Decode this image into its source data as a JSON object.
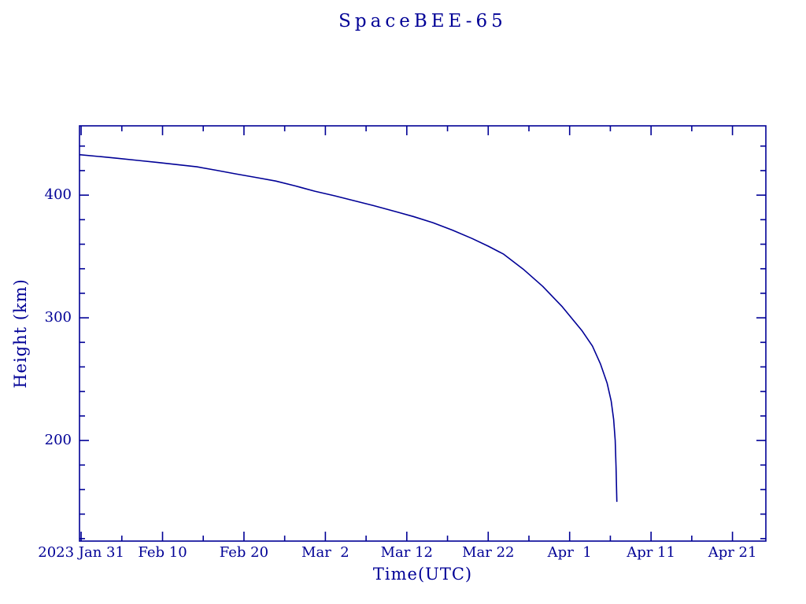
{
  "page": {
    "title": "SpaceBEE-65 orbital decay plot"
  },
  "colors": {
    "ink": "#000096",
    "background": "#ffffff"
  },
  "chart_data": {
    "type": "line",
    "title": "SpaceBEE-65",
    "xlabel": "Time(UTC)",
    "ylabel": "Height (km)",
    "grid": false,
    "legend": "none",
    "x_axis": {
      "unit": "days since 2023 Jan 31 00:00 UTC",
      "range_days": [
        -0.2,
        84.1
      ],
      "major_tick_days": [
        0,
        10,
        20,
        30,
        40,
        50,
        60,
        70,
        80
      ],
      "major_tick_labels": [
        "2023 Jan 31",
        "Feb 10",
        "Feb 20",
        "Mar  2",
        "Mar 12",
        "Mar 22",
        "Apr  1",
        "Apr 11",
        "Apr 21"
      ],
      "minor_tick_step_days": 5
    },
    "y_axis": {
      "range_km": [
        118,
        456.5
      ],
      "major_ticks_km": [
        200,
        300,
        400
      ],
      "major_tick_labels": [
        "200",
        "300",
        "400"
      ],
      "minor_tick_step_km": 20
    },
    "series": [
      {
        "name": "SpaceBEE-65 height",
        "color": "#000096",
        "points_day_km": [
          [
            -0.2,
            433.0
          ],
          [
            2.2,
            431.5
          ],
          [
            4.5,
            430.0
          ],
          [
            7.0,
            428.3
          ],
          [
            9.4,
            426.6
          ],
          [
            11.8,
            424.9
          ],
          [
            14.2,
            423.1
          ],
          [
            16.6,
            420.3
          ],
          [
            19.0,
            417.3
          ],
          [
            21.4,
            414.5
          ],
          [
            23.9,
            411.5
          ],
          [
            26.3,
            407.5
          ],
          [
            28.7,
            403.2
          ],
          [
            31.1,
            399.5
          ],
          [
            33.5,
            395.5
          ],
          [
            35.9,
            391.5
          ],
          [
            38.3,
            387.2
          ],
          [
            40.8,
            382.6
          ],
          [
            43.2,
            377.6
          ],
          [
            45.6,
            371.5
          ],
          [
            48.0,
            364.7
          ],
          [
            50.0,
            358.4
          ],
          [
            51.9,
            351.9
          ],
          [
            54.3,
            339.7
          ],
          [
            56.7,
            325.6
          ],
          [
            59.1,
            309.0
          ],
          [
            61.5,
            289.7
          ],
          [
            62.8,
            276.9
          ],
          [
            63.8,
            262.2
          ],
          [
            64.6,
            246.8
          ],
          [
            65.1,
            232.1
          ],
          [
            65.4,
            217.3
          ],
          [
            65.6,
            200.0
          ],
          [
            65.7,
            177.6
          ],
          [
            65.8,
            150.0
          ]
        ]
      }
    ]
  }
}
